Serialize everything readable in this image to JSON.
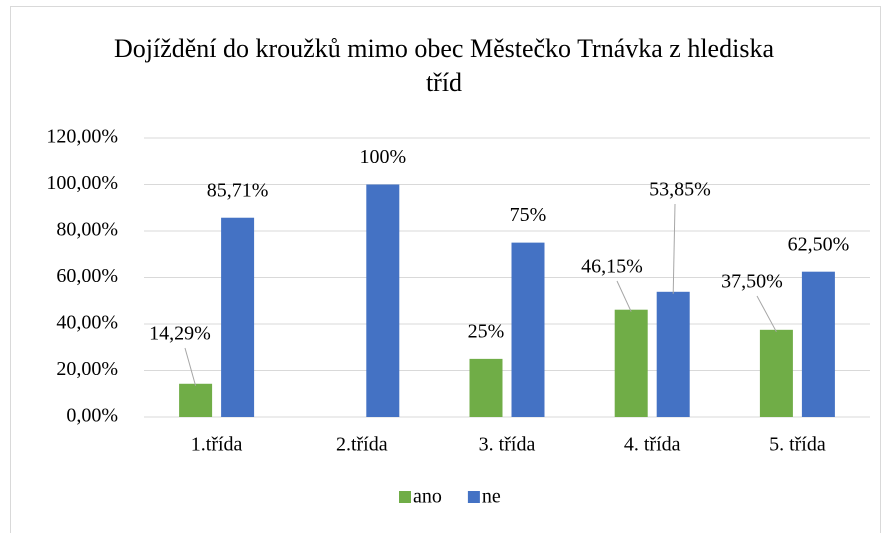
{
  "chart_data": {
    "type": "bar",
    "title": "Dojíždění do kroužků mimo obec Městečko Trnávka z hlediska tříd",
    "categories": [
      "1.třída",
      "2.třída",
      "3. třída",
      "4. třída",
      "5. třída"
    ],
    "series": [
      {
        "name": "ano",
        "color": "#70ad47",
        "values": [
          14.29,
          null,
          25,
          46.15,
          37.5
        ],
        "value_labels": [
          "14,29%",
          null,
          "25%",
          "46,15%",
          "37,50%"
        ]
      },
      {
        "name": "ne",
        "color": "#4472c4",
        "values": [
          85.71,
          100,
          75,
          53.85,
          62.5
        ],
        "value_labels": [
          "85,71%",
          "100%",
          "75%",
          "53,85%",
          "62,50%"
        ]
      }
    ],
    "ylim": [
      0,
      120
    ],
    "yticks": [
      {
        "value": 0,
        "label": "0,00%"
      },
      {
        "value": 20,
        "label": "20,00%"
      },
      {
        "value": 40,
        "label": "40,00%"
      },
      {
        "value": 60,
        "label": "60,00%"
      },
      {
        "value": 80,
        "label": "80,00%"
      },
      {
        "value": 100,
        "label": "100,00%"
      },
      {
        "value": 120,
        "label": "120,00%"
      }
    ],
    "grid": true,
    "legend": "bottom"
  }
}
